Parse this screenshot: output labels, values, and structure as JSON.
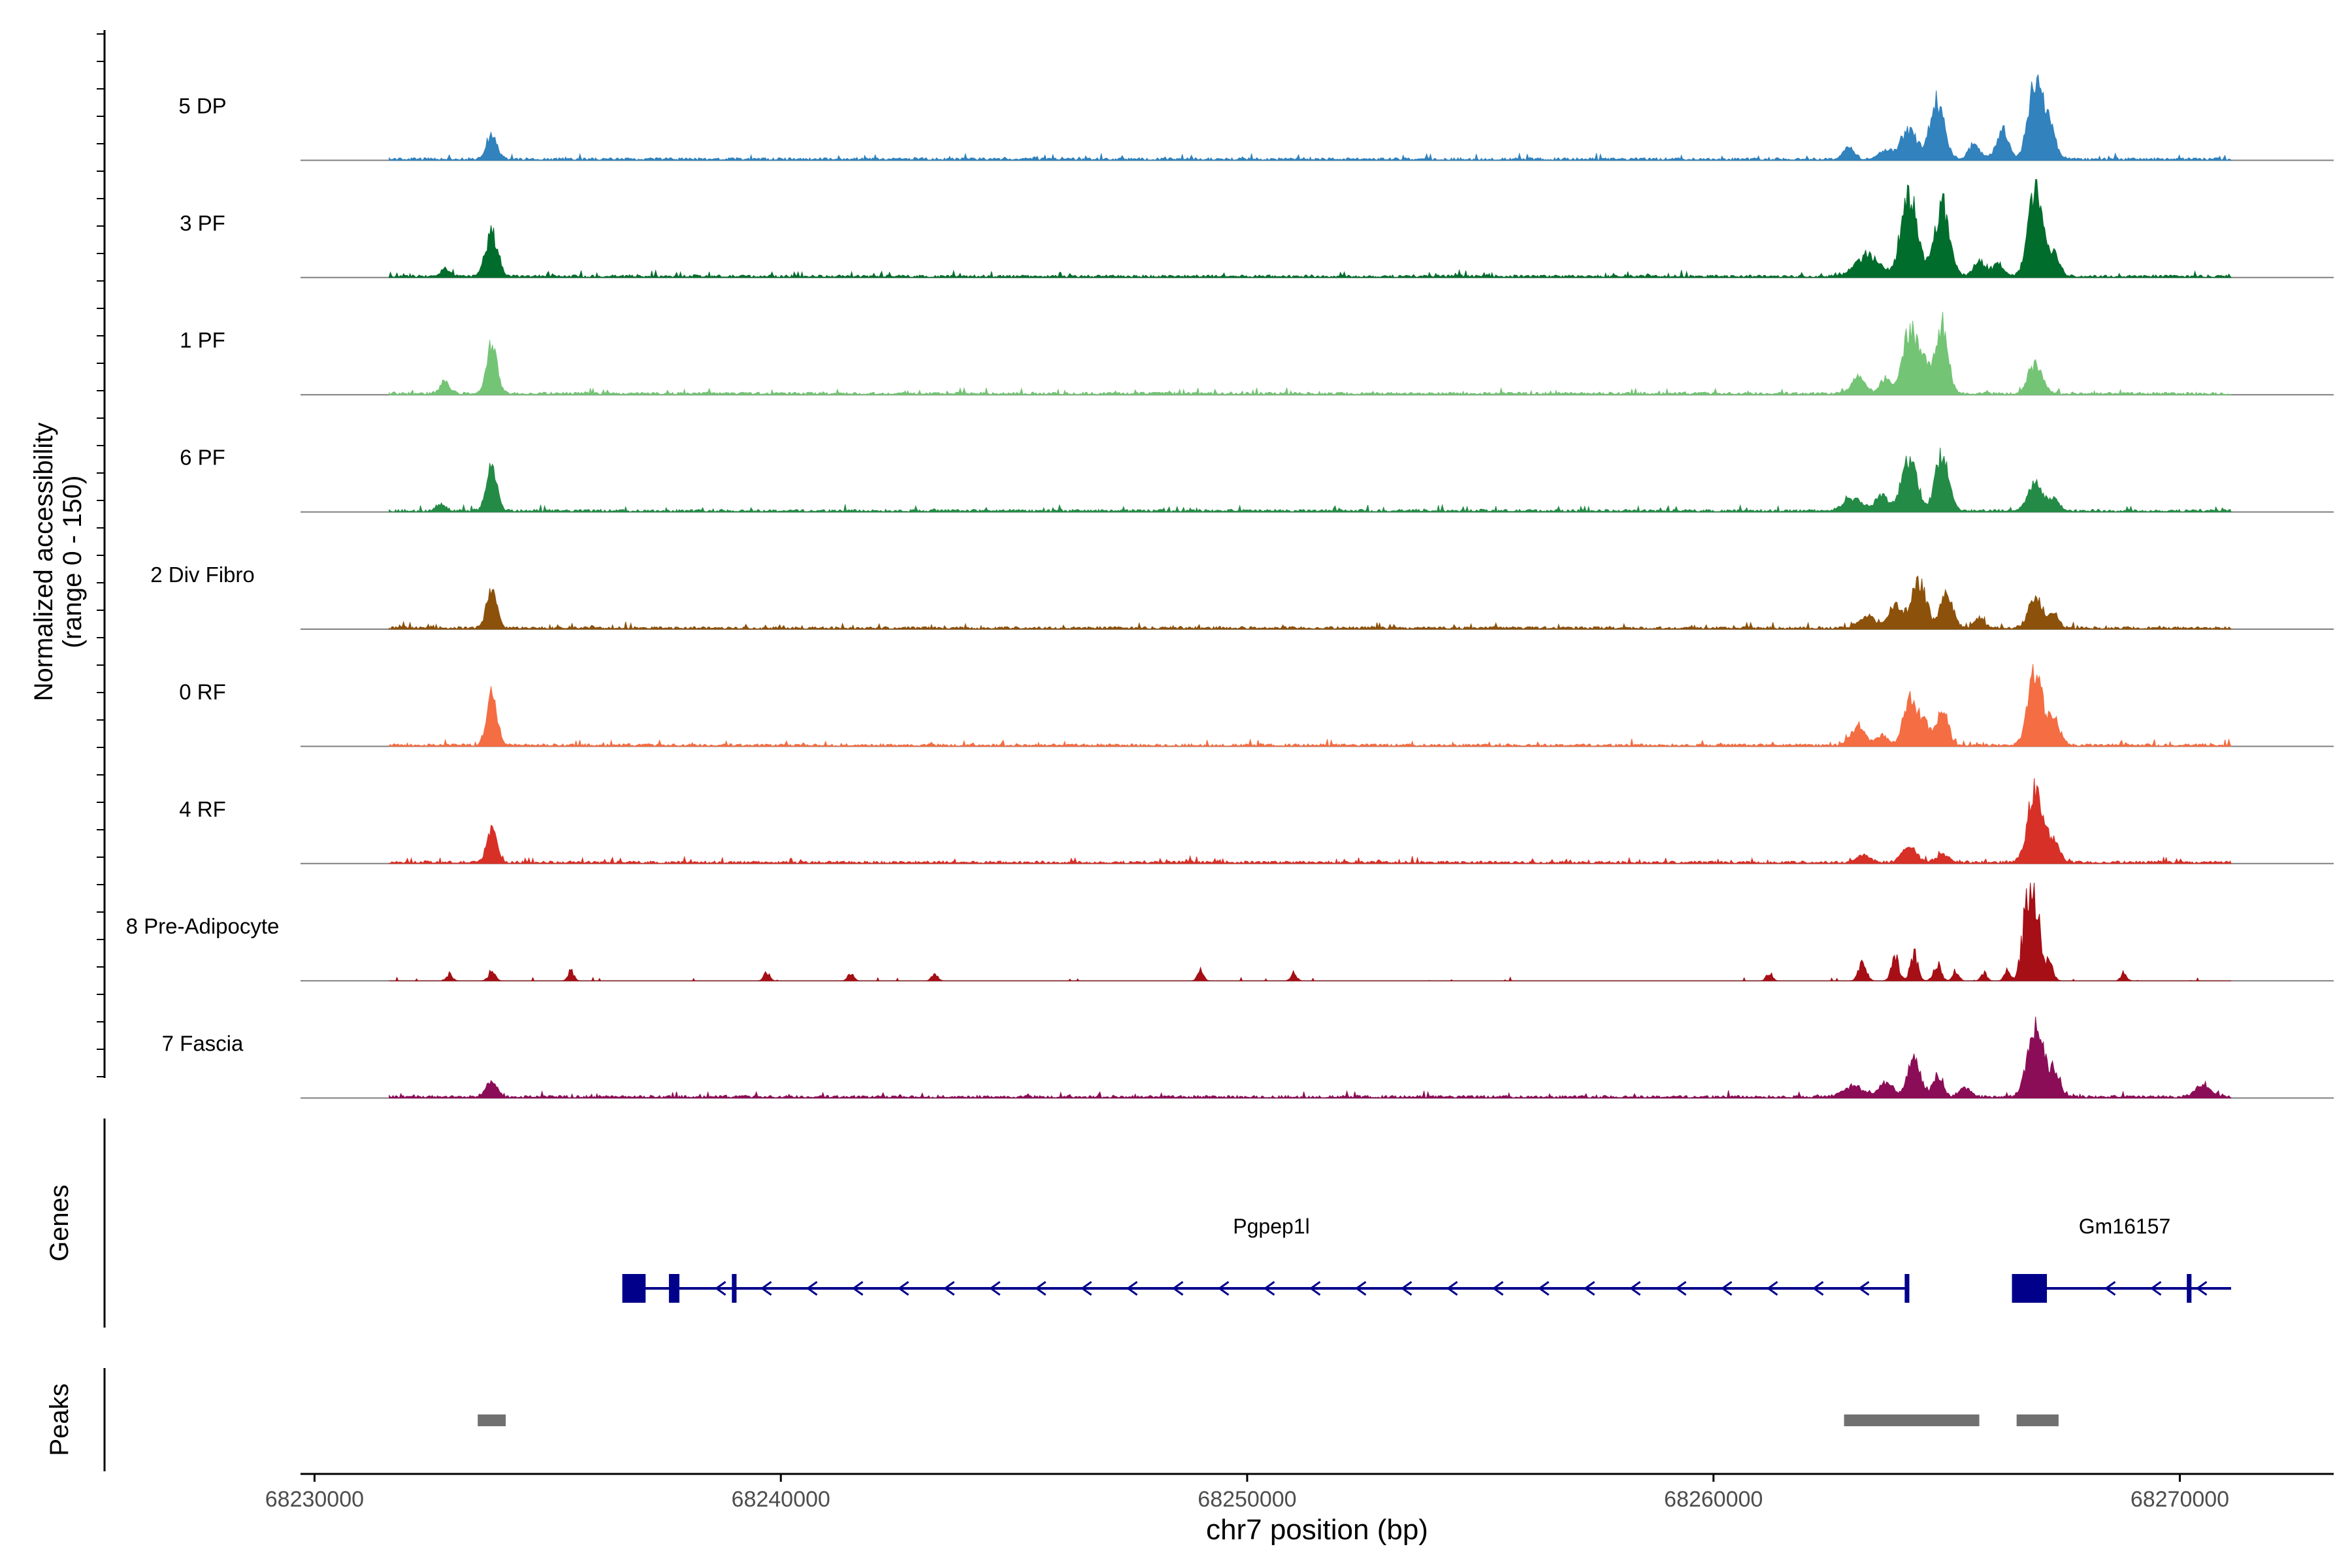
{
  "chart_data": {
    "type": "area",
    "title": "",
    "ylabel": "Normalized accessibility",
    "ylabel_range": "(range 0 - 150)",
    "xlabel": "chr7 position (bp)",
    "xlim": [
      68229700,
      68273300
    ],
    "ylim": [
      0,
      150
    ],
    "x_ticks": [
      68230000,
      68240000,
      68250000,
      68260000,
      68270000
    ],
    "x_tick_labels": [
      "68230000",
      "68240000",
      "68250000",
      "68260000",
      "68270000"
    ],
    "track_start": 68231600,
    "track_end": 68271100,
    "series": [
      {
        "name": "5 DP",
        "color": "#3182bd",
        "peaks": [
          [
            68233800,
            40,
            110
          ],
          [
            68262900,
            18,
            120
          ],
          [
            68263700,
            14,
            160
          ],
          [
            68264200,
            45,
            170
          ],
          [
            68264800,
            95,
            150
          ],
          [
            68265600,
            22,
            130
          ],
          [
            68266200,
            48,
            120
          ],
          [
            68266900,
            125,
            150
          ],
          [
            68267200,
            50,
            130
          ]
        ]
      },
      {
        "name": "3 PF",
        "color": "#006d2c",
        "peaks": [
          [
            68232800,
            12,
            100
          ],
          [
            68233800,
            70,
            130
          ],
          [
            68263300,
            35,
            250
          ],
          [
            68264200,
            130,
            170
          ],
          [
            68264900,
            115,
            160
          ],
          [
            68265700,
            25,
            120
          ],
          [
            68266100,
            20,
            120
          ],
          [
            68266900,
            140,
            150
          ],
          [
            68267300,
            35,
            120
          ]
        ]
      },
      {
        "name": "1 PF",
        "color": "#74c476",
        "peaks": [
          [
            68232800,
            20,
            100
          ],
          [
            68233800,
            80,
            110
          ],
          [
            68263100,
            25,
            150
          ],
          [
            68263700,
            25,
            120
          ],
          [
            68264200,
            95,
            150
          ],
          [
            68264500,
            50,
            140
          ],
          [
            68264900,
            110,
            130
          ],
          [
            68266900,
            45,
            150
          ]
        ]
      },
      {
        "name": "6 PF",
        "color": "#238b45",
        "peaks": [
          [
            68232700,
            12,
            100
          ],
          [
            68233800,
            70,
            110
          ],
          [
            68263000,
            20,
            200
          ],
          [
            68263600,
            25,
            130
          ],
          [
            68264200,
            85,
            160
          ],
          [
            68264900,
            95,
            140
          ],
          [
            68266900,
            45,
            150
          ],
          [
            68267300,
            22,
            110
          ]
        ]
      },
      {
        "name": "2 Div Fibro",
        "color": "#8c510a",
        "peaks": [
          [
            68233800,
            60,
            110
          ],
          [
            68263300,
            18,
            200
          ],
          [
            68263900,
            35,
            140
          ],
          [
            68264400,
            75,
            160
          ],
          [
            68265000,
            55,
            130
          ],
          [
            68265700,
            15,
            110
          ],
          [
            68266900,
            45,
            150
          ],
          [
            68267300,
            22,
            110
          ]
        ]
      },
      {
        "name": "0 RF",
        "color": "#f46d43",
        "peaks": [
          [
            68233800,
            80,
            110
          ],
          [
            68263100,
            30,
            150
          ],
          [
            68263600,
            15,
            120
          ],
          [
            68264200,
            65,
            140
          ],
          [
            68264500,
            35,
            120
          ],
          [
            68264900,
            55,
            130
          ],
          [
            68266900,
            115,
            150
          ],
          [
            68267300,
            40,
            130
          ]
        ]
      },
      {
        "name": "4 RF",
        "color": "#d73027",
        "peaks": [
          [
            68233800,
            60,
            100
          ],
          [
            68263200,
            12,
            150
          ],
          [
            68264200,
            25,
            150
          ],
          [
            68264900,
            15,
            120
          ],
          [
            68266900,
            115,
            160
          ],
          [
            68267300,
            35,
            120
          ]
        ]
      },
      {
        "name": "8 Pre-Adipocyte",
        "color": "#a50f15",
        "peaks": [
          [
            68232900,
            12,
            60
          ],
          [
            68233800,
            18,
            70
          ],
          [
            68235500,
            18,
            60
          ],
          [
            68239700,
            15,
            60
          ],
          [
            68241500,
            15,
            60
          ],
          [
            68243300,
            15,
            60
          ],
          [
            68249000,
            20,
            60
          ],
          [
            68251000,
            15,
            60
          ],
          [
            68261200,
            15,
            60
          ],
          [
            68263200,
            35,
            80
          ],
          [
            68263900,
            40,
            80
          ],
          [
            68264300,
            45,
            80
          ],
          [
            68264800,
            30,
            80
          ],
          [
            68265200,
            20,
            60
          ],
          [
            68265800,
            15,
            60
          ],
          [
            68266300,
            20,
            60
          ],
          [
            68266700,
            95,
            100
          ],
          [
            68266900,
            135,
            120
          ],
          [
            68267200,
            30,
            80
          ],
          [
            68268800,
            15,
            60
          ]
        ]
      },
      {
        "name": "7 Fascia",
        "color": "#8c0d57",
        "peaks": [
          [
            68233800,
            25,
            120
          ],
          [
            68263000,
            18,
            200
          ],
          [
            68263700,
            22,
            150
          ],
          [
            68264300,
            60,
            130
          ],
          [
            68264800,
            30,
            120
          ],
          [
            68265400,
            15,
            120
          ],
          [
            68266900,
            115,
            160
          ],
          [
            68267300,
            40,
            130
          ],
          [
            68270500,
            20,
            150
          ]
        ]
      }
    ],
    "genes": {
      "label": "Genes",
      "items": [
        {
          "name": "Pgpep1l",
          "start": 68236600,
          "end": 68264200,
          "strand": "-",
          "exons": [
            [
              68236600,
              68237100,
              "thick"
            ],
            [
              68237600,
              68237800,
              "thick"
            ],
            [
              68238950,
              68239050,
              "thin"
            ],
            [
              68264100,
              68264200,
              "thin"
            ]
          ]
        },
        {
          "name": "Gm16157",
          "start": 68266400,
          "end": 68271100,
          "strand": "-",
          "exons": [
            [
              68266400,
              68267150,
              "thick"
            ],
            [
              68270150,
              68270250,
              "thin"
            ]
          ]
        }
      ]
    },
    "peaks_track": {
      "label": "Peaks",
      "regions": [
        [
          68233500,
          68234100
        ],
        [
          68262800,
          68265700
        ],
        [
          68266500,
          68267400
        ]
      ]
    }
  }
}
